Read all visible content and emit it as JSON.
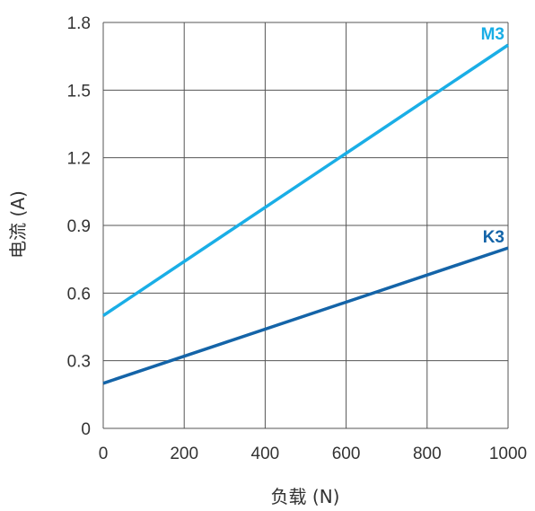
{
  "chart_data": {
    "type": "line",
    "xlabel": "负载 (N)",
    "ylabel": "电流 (A)",
    "xlim": [
      0,
      1000
    ],
    "ylim": [
      0,
      1.8
    ],
    "x_ticks": [
      "0",
      "200",
      "400",
      "600",
      "800",
      "1000"
    ],
    "y_ticks": [
      "0",
      "0.3",
      "0.6",
      "0.9",
      "1.2",
      "1.5",
      "1.8"
    ],
    "grid": true,
    "series": [
      {
        "name": "M3",
        "x": [
          0,
          1000
        ],
        "y": [
          0.5,
          1.7
        ],
        "color": "#1aaee6"
      },
      {
        "name": "K3",
        "x": [
          0,
          1000
        ],
        "y": [
          0.2,
          0.8
        ],
        "color": "#1464a8"
      }
    ]
  }
}
